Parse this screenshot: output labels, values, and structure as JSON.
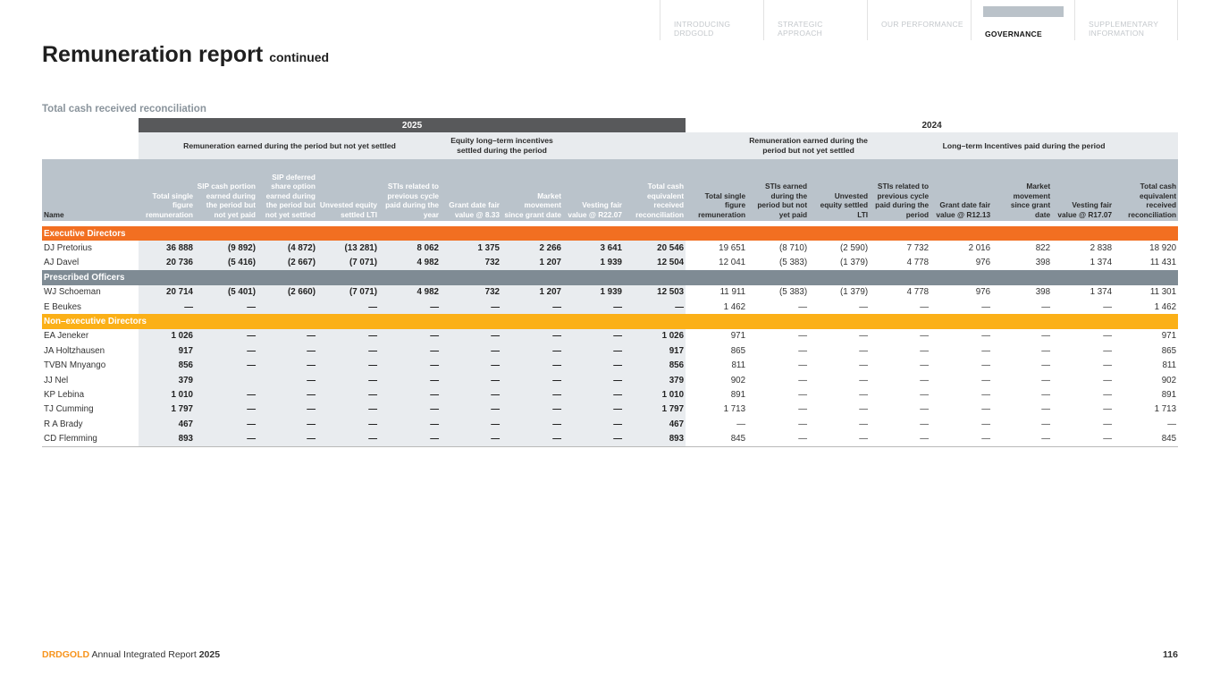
{
  "nav": [
    {
      "label": "INTRODUCING DRDGOLD"
    },
    {
      "label": "STRATEGIC APPROACH"
    },
    {
      "label": "OUR PERFORMANCE"
    },
    {
      "label": "GOVERNANCE",
      "active": true
    },
    {
      "label": "SUPPLEMENTARY INFORMATION"
    }
  ],
  "title": "Remuneration report",
  "title_suffix": "continued",
  "subtitle": "Total cash received reconciliation",
  "table": {
    "year_2025": "2025",
    "year_2024": "2024",
    "groups_2025": [
      "Remuneration earned during the period but not yet settled",
      "Equity long–term incentives settled during the period"
    ],
    "groups_2024": [
      "Remuneration earned during the period but not yet settled",
      "Long–term Incentives paid during the period"
    ],
    "name_header": "Name",
    "columns_2025": [
      "Total single figure remuneration",
      "SIP cash portion earned during the period but not yet paid",
      "SIP deferred share option earned during the period but not yet settled",
      "Unvested equity settled LTI",
      "STIs related to previous cycle paid during the year",
      "Grant date fair value @ 8.33",
      "Market movement since grant date",
      "Vesting fair value @ R22.07",
      "Total cash equivalent received reconciliation"
    ],
    "columns_2024": [
      "Total single figure remuneration",
      "STIs earned during the period but not yet paid",
      "Unvested equity settled LTI",
      "STIs related to previous cycle paid during the period",
      "Grant date fair value @ R12.13",
      "Market movement since grant date",
      "Vesting fair value @ R17.07",
      "Total cash equivalent received reconciliation"
    ],
    "sections": [
      {
        "label": "Executive Directors",
        "color": "#f26f21",
        "rows": [
          {
            "name": "DJ Pretorius",
            "v2025": [
              "36 888",
              "(9 892)",
              "(4 872)",
              "(13 281)",
              "8 062",
              "1 375",
              "2 266",
              "3 641",
              "20 546"
            ],
            "v2024": [
              "19 651",
              "(8 710)",
              "(2 590)",
              "7 732",
              "2 016",
              "822",
              "2 838",
              "18 920"
            ]
          },
          {
            "name": "AJ Davel",
            "v2025": [
              "20 736",
              "(5 416)",
              "(2 667)",
              "(7 071)",
              "4 982",
              "732",
              "1 207",
              "1 939",
              "12 504"
            ],
            "v2024": [
              "12 041",
              "(5 383)",
              "(1 379)",
              "4 778",
              "976",
              "398",
              "1 374",
              "11 431"
            ]
          }
        ]
      },
      {
        "label": "Prescribed Officers",
        "color": "#7f8b94",
        "rows": [
          {
            "name": "WJ Schoeman",
            "v2025": [
              "20 714",
              "(5 401)",
              "(2 660)",
              "(7 071)",
              "4 982",
              "732",
              "1 207",
              "1 939",
              "12 503"
            ],
            "v2024": [
              "11 911",
              "(5 383)",
              "(1 379)",
              "4 778",
              "976",
              "398",
              "1 374",
              "11 301"
            ]
          },
          {
            "name": "E Beukes",
            "v2025": [
              "—",
              "—",
              "",
              "—",
              "—",
              "—",
              "—",
              "—",
              "—"
            ],
            "v2024": [
              "1 462",
              "—",
              "—",
              "—",
              "—",
              "—",
              "—",
              "1 462"
            ]
          }
        ]
      },
      {
        "label": "Non–executive Directors",
        "color": "#fbb017",
        "rows": [
          {
            "name": "EA Jeneker",
            "v2025": [
              "1 026",
              "—",
              "—",
              "—",
              "—",
              "—",
              "—",
              "—",
              "1 026"
            ],
            "v2024": [
              "971",
              "—",
              "—",
              "—",
              "—",
              "—",
              "—",
              "971"
            ]
          },
          {
            "name": "JA Holtzhausen",
            "v2025": [
              "917",
              "—",
              "—",
              "—",
              "—",
              "—",
              "—",
              "—",
              "917"
            ],
            "v2024": [
              "865",
              "—",
              "—",
              "—",
              "—",
              "—",
              "—",
              "865"
            ]
          },
          {
            "name": "TVBN Mnyango",
            "v2025": [
              "856",
              "—",
              "—",
              "—",
              "—",
              "—",
              "—",
              "—",
              "856"
            ],
            "v2024": [
              "811",
              "—",
              "—",
              "—",
              "—",
              "—",
              "—",
              "811"
            ]
          },
          {
            "name": "JJ Nel",
            "v2025": [
              "379",
              "",
              "—",
              "—",
              "—",
              "—",
              "—",
              "—",
              "379"
            ],
            "v2024": [
              "902",
              "—",
              "—",
              "—",
              "—",
              "—",
              "—",
              "902"
            ]
          },
          {
            "name": "KP Lebina",
            "v2025": [
              "1 010",
              "—",
              "—",
              "—",
              "—",
              "—",
              "—",
              "—",
              "1 010"
            ],
            "v2024": [
              "891",
              "—",
              "—",
              "—",
              "—",
              "—",
              "—",
              "891"
            ]
          },
          {
            "name": "TJ Cumming",
            "v2025": [
              "1 797",
              "—",
              "—",
              "—",
              "—",
              "—",
              "—",
              "—",
              "1 797"
            ],
            "v2024": [
              "1 713",
              "—",
              "—",
              "—",
              "—",
              "—",
              "—",
              "1 713"
            ]
          },
          {
            "name": "R A Brady",
            "v2025": [
              "467",
              "—",
              "—",
              "—",
              "—",
              "—",
              "—",
              "—",
              "467"
            ],
            "v2024": [
              "—",
              "—",
              "—",
              "—",
              "—",
              "—",
              "—",
              "—"
            ]
          },
          {
            "name": "CD Flemming",
            "v2025": [
              "893",
              "—",
              "—",
              "—",
              "—",
              "—",
              "—",
              "—",
              "893"
            ],
            "v2024": [
              "845",
              "—",
              "—",
              "—",
              "—",
              "—",
              "—",
              "845"
            ]
          }
        ]
      }
    ]
  },
  "footer": {
    "brand": "DRDGOLD",
    "text": "Annual Integrated Report",
    "year": "2025",
    "page": "116"
  }
}
